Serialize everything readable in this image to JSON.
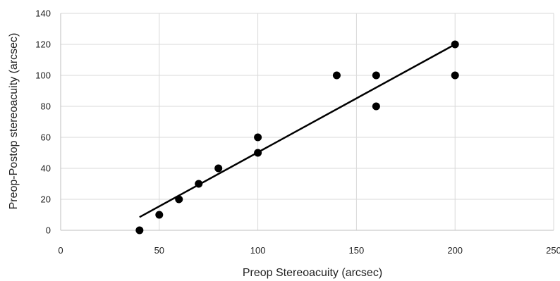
{
  "chart_data": {
    "type": "scatter",
    "xlabel": "Preop Stereoacuity (arcsec)",
    "ylabel": "Preop-Postop stereoacuity (arcsec)",
    "xlim": [
      0,
      250
    ],
    "ylim": [
      0,
      140
    ],
    "x_ticks": [
      "0",
      "50",
      "100",
      "150",
      "200",
      "250"
    ],
    "y_ticks": [
      "0",
      "20",
      "40",
      "60",
      "80",
      "100",
      "120",
      "140"
    ],
    "grid": true,
    "legend": "none",
    "point_color": "#000000",
    "series": [
      {
        "points": [
          {
            "x": 40,
            "y": 0
          },
          {
            "x": 50,
            "y": 10
          },
          {
            "x": 60,
            "y": 20
          },
          {
            "x": 70,
            "y": 30
          },
          {
            "x": 80,
            "y": 40
          },
          {
            "x": 100,
            "y": 50
          },
          {
            "x": 100,
            "y": 60
          },
          {
            "x": 140,
            "y": 100
          },
          {
            "x": 160,
            "y": 100
          },
          {
            "x": 160,
            "y": 80
          },
          {
            "x": 200,
            "y": 120
          },
          {
            "x": 200,
            "y": 100
          }
        ]
      }
    ],
    "trendline": {
      "type": "linear",
      "from": {
        "x": 40,
        "y": 8.5
      },
      "to": {
        "x": 200,
        "y": 120
      }
    }
  }
}
